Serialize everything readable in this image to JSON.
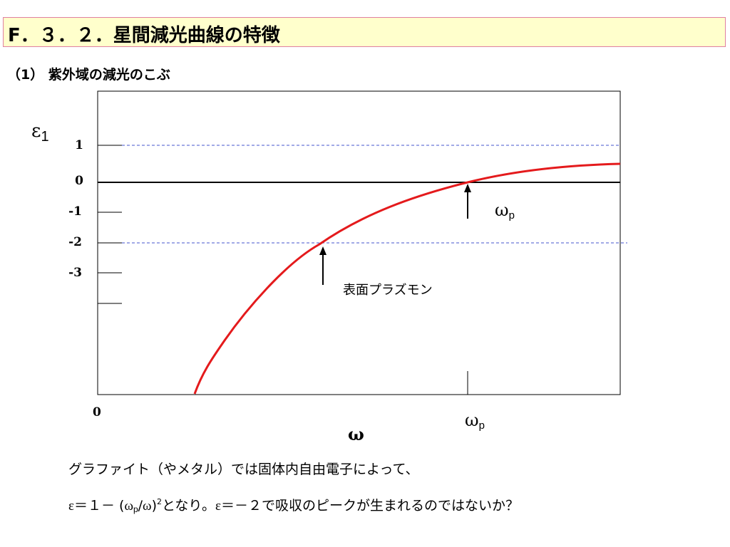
{
  "header": {
    "title": "F．３．２．星間減光曲線の特徴"
  },
  "section": {
    "heading": "（1） 紫外域の減光のこぶ"
  },
  "chart_data": {
    "type": "line",
    "title": "",
    "ylabel": {
      "symbol": "ε",
      "subscript": "1"
    },
    "xlabel": "ω",
    "y_ticks": [
      "1",
      "0",
      "-1",
      "-2",
      "-3"
    ],
    "x_ticks": [
      "0"
    ],
    "x_marker": {
      "symbol": "ω",
      "subscript": "p"
    },
    "series": [
      {
        "color": "#e41a1c",
        "points": [
          [
            0.186,
            -7.0
          ],
          [
            0.25,
            -5.15
          ],
          [
            0.32,
            -3.95
          ],
          [
            0.43,
            -2.0
          ],
          [
            0.55,
            -1.03
          ],
          [
            0.71,
            0.0
          ],
          [
            0.85,
            0.38
          ],
          [
            1.0,
            0.6
          ]
        ]
      }
    ],
    "reference_lines": [
      {
        "y": 1,
        "style": "dashed",
        "color": "#4455cc"
      },
      {
        "y": 0,
        "style": "solid",
        "color": "#000000"
      },
      {
        "y": -2,
        "style": "dashed",
        "color": "#4455cc"
      }
    ],
    "annotations": [
      {
        "text": "表面プラズモン",
        "arrow_points_to": {
          "x": 0.43,
          "y": -2.0
        }
      },
      {
        "symbol": "ω",
        "subscript": "p",
        "arrow_points_to": {
          "x": 0.71,
          "y": 0.0
        }
      }
    ],
    "curve_color": "#e41a1c",
    "dashed_color": "#4455cc"
  },
  "notes": {
    "line1": "グラファイト（やメタル）では固体内自由電子によって、",
    "line2": {
      "eps": "ε",
      "eq1": "＝１－ (",
      "omega": "ω",
      "p": "p",
      "slash": "/",
      "omega2": "ω",
      "close": ")",
      "sq": "2",
      "mid": "となり。",
      "eps2": "ε",
      "rest": "＝－２で吸収のピークが生まれるのではないか？"
    }
  }
}
